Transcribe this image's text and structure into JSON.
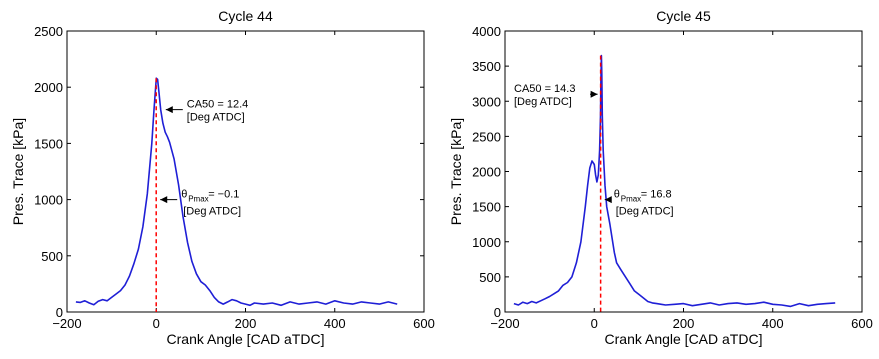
{
  "chart_data": [
    {
      "type": "line",
      "title": "Cycle 44",
      "xlabel": "Crank Angle [CAD aTDC]",
      "ylabel": "Pres. Trace [kPa]",
      "xlim": [
        -200,
        600
      ],
      "ylim": [
        0,
        2500
      ],
      "xticks": [
        "−200",
        "0",
        "200",
        "400",
        "600"
      ],
      "yticks": [
        "0",
        "500",
        "1000",
        "1500",
        "2000",
        "2500"
      ],
      "xtick_values": [
        -200,
        0,
        200,
        400,
        600
      ],
      "ytick_values": [
        0,
        500,
        1000,
        1500,
        2000,
        2500
      ],
      "line_color": "#1f1fd6",
      "marker_color": "#ff0000",
      "series": [
        {
          "x": [
            -180,
            -170,
            -160,
            -150,
            -140,
            -130,
            -120,
            -110,
            -100,
            -90,
            -80,
            -70,
            -60,
            -50,
            -40,
            -30,
            -20,
            -10,
            -5,
            0,
            3,
            6,
            10,
            15,
            20,
            25,
            30,
            40,
            50,
            60,
            70,
            80,
            90,
            100,
            110,
            120,
            130,
            140,
            150,
            160,
            170,
            180,
            190,
            200,
            210,
            220,
            240,
            260,
            280,
            300,
            320,
            340,
            360,
            380,
            400,
            420,
            440,
            460,
            480,
            500,
            520,
            540
          ],
          "y": [
            90,
            85,
            100,
            80,
            65,
            95,
            110,
            100,
            130,
            160,
            190,
            240,
            320,
            430,
            560,
            760,
            1050,
            1500,
            1800,
            2080,
            2070,
            1960,
            1800,
            1680,
            1600,
            1560,
            1510,
            1360,
            1130,
            850,
            620,
            450,
            340,
            270,
            240,
            190,
            130,
            90,
            70,
            90,
            110,
            100,
            80,
            70,
            60,
            80,
            70,
            80,
            60,
            90,
            70,
            80,
            90,
            70,
            100,
            80,
            70,
            90,
            80,
            70,
            90,
            70
          ]
        }
      ],
      "annotations": [
        {
          "lines": [
            "CA50 = 12.4",
            "[Deg ATDC]"
          ],
          "x": 12.4,
          "y": 1800
        },
        {
          "lines": [
            "θ",
            "Pmax",
            " = −0.1",
            "[Deg ATDC]"
          ],
          "x": -0.1,
          "y": 1000
        }
      ],
      "marker_x": -0.1
    },
    {
      "type": "line",
      "title": "Cycle 45",
      "xlabel": "Crank Angle [CAD aTDC]",
      "ylabel": "Pres. Trace [kPa]",
      "xlim": [
        -200,
        600
      ],
      "ylim": [
        0,
        4000
      ],
      "xticks": [
        "−200",
        "0",
        "200",
        "400",
        "600"
      ],
      "yticks": [
        "0",
        "500",
        "1000",
        "1500",
        "2000",
        "2500",
        "3000",
        "3500",
        "4000"
      ],
      "xtick_values": [
        -200,
        0,
        200,
        400,
        600
      ],
      "ytick_values": [
        0,
        500,
        1000,
        1500,
        2000,
        2500,
        3000,
        3500,
        4000
      ],
      "line_color": "#1f1fd6",
      "marker_color": "#ff0000",
      "series": [
        {
          "x": [
            -180,
            -170,
            -160,
            -150,
            -140,
            -130,
            -120,
            -110,
            -100,
            -90,
            -80,
            -70,
            -60,
            -50,
            -40,
            -30,
            -20,
            -15,
            -10,
            -5,
            0,
            3,
            6,
            9,
            12,
            14,
            15,
            16,
            17,
            18,
            20,
            24,
            28,
            35,
            40,
            45,
            50,
            60,
            70,
            80,
            90,
            100,
            110,
            120,
            130,
            140,
            150,
            160,
            180,
            200,
            220,
            240,
            260,
            280,
            300,
            320,
            340,
            360,
            380,
            400,
            420,
            440,
            460,
            480,
            500,
            520,
            540
          ],
          "y": [
            120,
            100,
            140,
            120,
            150,
            130,
            160,
            190,
            220,
            260,
            300,
            380,
            420,
            500,
            700,
            1000,
            1500,
            1800,
            2050,
            2150,
            2100,
            1950,
            1850,
            1950,
            2300,
            2800,
            3300,
            3650,
            3400,
            2800,
            2300,
            1800,
            1500,
            1250,
            1050,
            850,
            700,
            600,
            500,
            400,
            300,
            250,
            200,
            150,
            130,
            120,
            110,
            100,
            110,
            120,
            90,
            110,
            130,
            100,
            120,
            130,
            110,
            120,
            140,
            110,
            100,
            80,
            120,
            90,
            110,
            120,
            130
          ]
        }
      ],
      "annotations": [
        {
          "lines": [
            "CA50 = 14.3",
            "[Deg ATDC]"
          ],
          "x": 14.3,
          "y": 3100
        },
        {
          "lines": [
            "θ",
            "Pmax",
            " = 16.8",
            "[Deg ATDC]"
          ],
          "x": 16.8,
          "y": 1600
        }
      ],
      "marker_x": 14.3
    }
  ]
}
